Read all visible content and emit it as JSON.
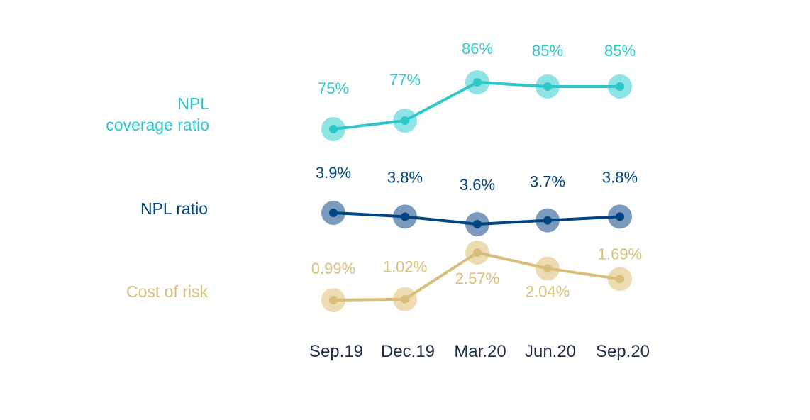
{
  "chart_data": {
    "type": "line",
    "categories": [
      "Sep.19",
      "Dec.19",
      "Mar.20",
      "Jun.20",
      "Sep.20"
    ],
    "series": [
      {
        "name": "NPL coverage ratio",
        "name_lines": [
          "NPL",
          "coverage ratio"
        ],
        "values": [
          75,
          77,
          86,
          85,
          85
        ],
        "labels": [
          "75%",
          "77%",
          "86%",
          "85%",
          "85%"
        ],
        "color": "#2ec7c9",
        "halo_color": "#8ee3e4"
      },
      {
        "name": "NPL ratio",
        "name_lines": [
          "NPL ratio"
        ],
        "values": [
          3.9,
          3.8,
          3.6,
          3.7,
          3.8
        ],
        "labels": [
          "3.9%",
          "3.8%",
          "3.6%",
          "3.7%",
          "3.8%"
        ],
        "color": "#004481",
        "halo_color": "#7a9bbd"
      },
      {
        "name": "Cost of risk",
        "name_lines": [
          "Cost of risk"
        ],
        "values": [
          0.99,
          1.02,
          2.57,
          2.04,
          1.69
        ],
        "labels": [
          "0.99%",
          "1.02%",
          "2.57%",
          "2.04%",
          "1.69%"
        ],
        "color": "#d8be7a",
        "halo_color": "#eddcb1"
      }
    ],
    "xlabel": "",
    "ylabel": "",
    "grid": false,
    "legend": "left"
  }
}
